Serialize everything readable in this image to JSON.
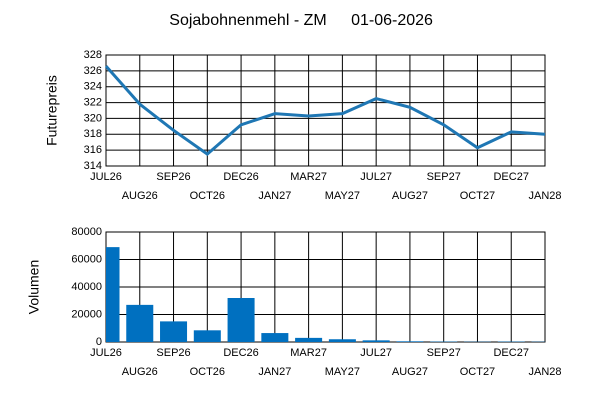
{
  "title": "Sojabohnenmehl - ZM",
  "date": "01-06-2026",
  "chart_data": [
    {
      "type": "line",
      "ylabel": "Futurepreis",
      "categories": [
        "JUL26",
        "AUG26",
        "SEP26",
        "OCT26",
        "DEC26",
        "JAN27",
        "MAR27",
        "MAY27",
        "JUL27",
        "AUG27",
        "SEP27",
        "OCT27",
        "DEC27",
        "JAN28"
      ],
      "values": [
        326.6,
        321.8,
        318.5,
        315.5,
        319.2,
        320.6,
        320.3,
        320.6,
        322.5,
        321.4,
        319.2,
        316.3,
        318.3,
        318.0
      ],
      "color": "#1f77b4",
      "ylim": [
        314,
        328
      ],
      "yticks": [
        314,
        316,
        318,
        320,
        322,
        324,
        326,
        328
      ],
      "grid": true
    },
    {
      "type": "bar",
      "ylabel": "Volumen",
      "categories": [
        "JUL26",
        "AUG26",
        "SEP26",
        "OCT26",
        "DEC26",
        "JAN27",
        "MAR27",
        "MAY27",
        "JUL27",
        "AUG27",
        "SEP27",
        "OCT27",
        "DEC27",
        "JAN28"
      ],
      "values": [
        69000,
        27000,
        15000,
        8500,
        32000,
        6500,
        3000,
        2000,
        1200,
        500,
        300,
        200,
        300,
        200
      ],
      "color": "#0070c0",
      "ylim": [
        0,
        80000
      ],
      "yticks": [
        0,
        20000,
        40000,
        60000,
        80000
      ],
      "grid": true
    }
  ]
}
